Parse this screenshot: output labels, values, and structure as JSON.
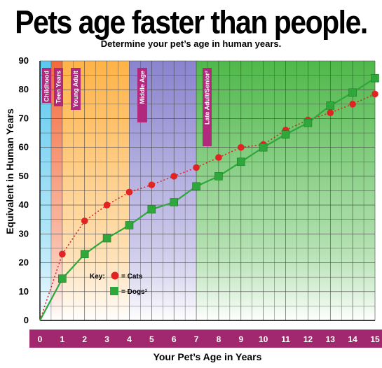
{
  "title": "Pets age faster than people.",
  "subtitle": "Determine your pet’s age in human years.",
  "chart_data": {
    "type": "line",
    "title": "Pets age faster than people.",
    "subtitle": "Determine your pet’s age in human years.",
    "xlabel": "Your Pet’s Age in Years",
    "ylabel": "Equivalent in Human Years",
    "xlim": [
      0,
      15
    ],
    "ylim": [
      0,
      90
    ],
    "x_ticks": [
      "0",
      "1",
      "2",
      "3",
      "4",
      "5",
      "6",
      "7",
      "8",
      "9",
      "10",
      "11",
      "12",
      "13",
      "14",
      "15"
    ],
    "y_ticks": [
      "0",
      "10",
      "20",
      "30",
      "40",
      "50",
      "60",
      "70",
      "80",
      "90"
    ],
    "grid": true,
    "x": [
      0,
      1,
      2,
      3,
      4,
      5,
      6,
      7,
      8,
      9,
      10,
      11,
      12,
      13,
      14,
      15
    ],
    "series": [
      {
        "name": "Cats",
        "marker": "circle",
        "line_style": "dotted",
        "color": "#e02424",
        "values": [
          0,
          23,
          34.5,
          40,
          44.5,
          47,
          50,
          53,
          56.5,
          60,
          61,
          66,
          69.5,
          72,
          75,
          78.5
        ]
      },
      {
        "name": "Dogs¹",
        "marker": "square",
        "line_style": "solid",
        "color": "#2ea83a",
        "values": [
          0,
          14.5,
          23,
          28.5,
          33,
          38.5,
          41,
          46.5,
          50,
          55,
          60,
          64.5,
          68.5,
          74.5,
          79,
          84
        ]
      }
    ],
    "life_stages": [
      {
        "label": "Childhood",
        "from": 0,
        "to": 0.5,
        "color": "#5bc8ef"
      },
      {
        "label": "Teen Years",
        "from": 0.5,
        "to": 1,
        "color": "#f26a3c"
      },
      {
        "label": "Young Adult",
        "from": 1,
        "to": 4,
        "color": "#ffb347"
      },
      {
        "label": "Middle Age",
        "from": 4,
        "to": 7,
        "color": "#8a83cf"
      },
      {
        "label": "Late Adult/Senior²",
        "from": 7,
        "to": 15,
        "color": "#4fb84a"
      }
    ],
    "key": {
      "label": "Key:",
      "cats": "= Cats",
      "dogs": "= Dogs¹"
    },
    "colors": {
      "axis_band": "#a1276f",
      "stage_label_bg": "#b0297c"
    }
  }
}
